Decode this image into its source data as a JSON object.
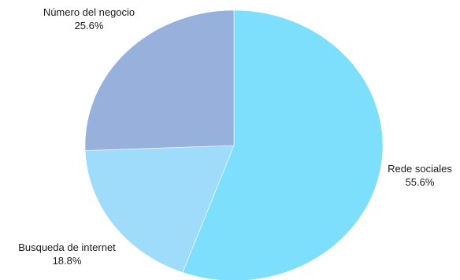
{
  "chart_data": {
    "type": "pie",
    "slices": [
      {
        "label": "Rede sociales",
        "value": 55.6,
        "value_label": "55.6%",
        "color": "#7ddffc"
      },
      {
        "label": "Busqueda de internet",
        "value": 18.8,
        "value_label": "18.8%",
        "color": "#9fdcfc"
      },
      {
        "label": "Número del negocio",
        "value": 25.6,
        "value_label": "25.6%",
        "color": "#97b1dc"
      }
    ],
    "start_angle_deg": 0,
    "direction": "clockwise",
    "legend": "none"
  }
}
